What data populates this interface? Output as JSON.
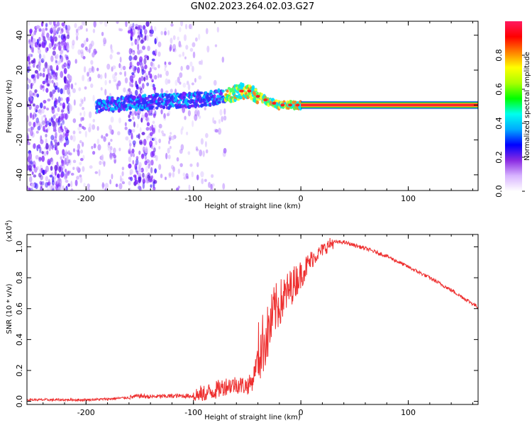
{
  "title": "GN02.2023.264.02.03.G27",
  "colors": {
    "snr_line": "#ee3030",
    "spectrum_low": "#7a20ff",
    "spectrum_high": "#ff1a40",
    "frame": "#000000"
  },
  "chart_data": [
    {
      "type": "heatmap",
      "name": "spectrogram",
      "title": "GN02.2023.264.02.03.G27",
      "xlabel": "Height of straight line (km)",
      "ylabel": "Frequency (Hz)",
      "xlim": [
        -255,
        165
      ],
      "ylim": [
        -49,
        48
      ],
      "x_ticks": [
        -200,
        -100,
        0,
        100
      ],
      "x_tick_labels": [
        "-200",
        "-100",
        "0",
        "100"
      ],
      "y_ticks": [
        -40,
        -20,
        0,
        20,
        40
      ],
      "y_tick_labels": [
        "-40",
        "-20",
        "0",
        "20",
        "40"
      ],
      "colorbar": {
        "label": "Normalized spectral amplitude",
        "range": [
          0.0,
          1.0
        ],
        "ticks": [
          0.0,
          0.2,
          0.4,
          0.6,
          0.8
        ],
        "tick_labels": [
          "0.0",
          "0.2",
          "0.4",
          "0.6",
          "0.8"
        ],
        "stops": [
          "#ffffff",
          "#d8b4ff",
          "#8a2be2",
          "#0000ff",
          "#00aaff",
          "#00ffee",
          "#00ff00",
          "#aaff00",
          "#ffff00",
          "#ff8000",
          "#ff0000",
          "#ff1a60"
        ]
      },
      "center_line_freq": [
        [
          -190,
          0
        ],
        [
          -160,
          1
        ],
        [
          -130,
          2
        ],
        [
          -100,
          3
        ],
        [
          -80,
          4
        ],
        [
          -65,
          6
        ],
        [
          -55,
          8
        ],
        [
          -48,
          8
        ],
        [
          -40,
          5
        ],
        [
          -30,
          2
        ],
        [
          -20,
          0
        ],
        [
          -10,
          0
        ],
        [
          0,
          0
        ],
        [
          165,
          0
        ]
      ]
    },
    {
      "type": "line",
      "name": "snr",
      "xlabel": "Height of straight line (km)",
      "ylabel": "SNR (10 * v/v)",
      "y_multiplier": "(x10",
      "y_multiplier_exp": "4",
      "y_multiplier_close": ")",
      "xlim": [
        -255,
        165
      ],
      "ylim": [
        -0.02,
        1.08
      ],
      "x_ticks": [
        -200,
        -100,
        0,
        100
      ],
      "x_tick_labels": [
        "-200",
        "-100",
        "0",
        "100"
      ],
      "y_ticks": [
        0.0,
        0.2,
        0.4,
        0.6,
        0.8,
        1.0
      ],
      "y_tick_labels": [
        "0.0",
        "0.2",
        "0.4",
        "0.6",
        "0.8",
        "1.0"
      ],
      "series": [
        {
          "name": "SNR",
          "x": [
            -255,
            -230,
            -200,
            -180,
            -160,
            -150,
            -140,
            -120,
            -100,
            -90,
            -80,
            -70,
            -60,
            -50,
            -45,
            -40,
            -35,
            -30,
            -25,
            -20,
            -15,
            -10,
            -5,
            0,
            10,
            20,
            30,
            40,
            60,
            80,
            100,
            120,
            140,
            165
          ],
          "y": [
            0.01,
            0.01,
            0.01,
            0.015,
            0.025,
            0.035,
            0.03,
            0.035,
            0.035,
            0.05,
            0.07,
            0.1,
            0.11,
            0.1,
            0.13,
            0.3,
            0.38,
            0.45,
            0.58,
            0.63,
            0.68,
            0.73,
            0.78,
            0.82,
            0.92,
            0.98,
            1.03,
            1.03,
            0.99,
            0.94,
            0.87,
            0.8,
            0.72,
            0.61
          ]
        }
      ]
    }
  ]
}
